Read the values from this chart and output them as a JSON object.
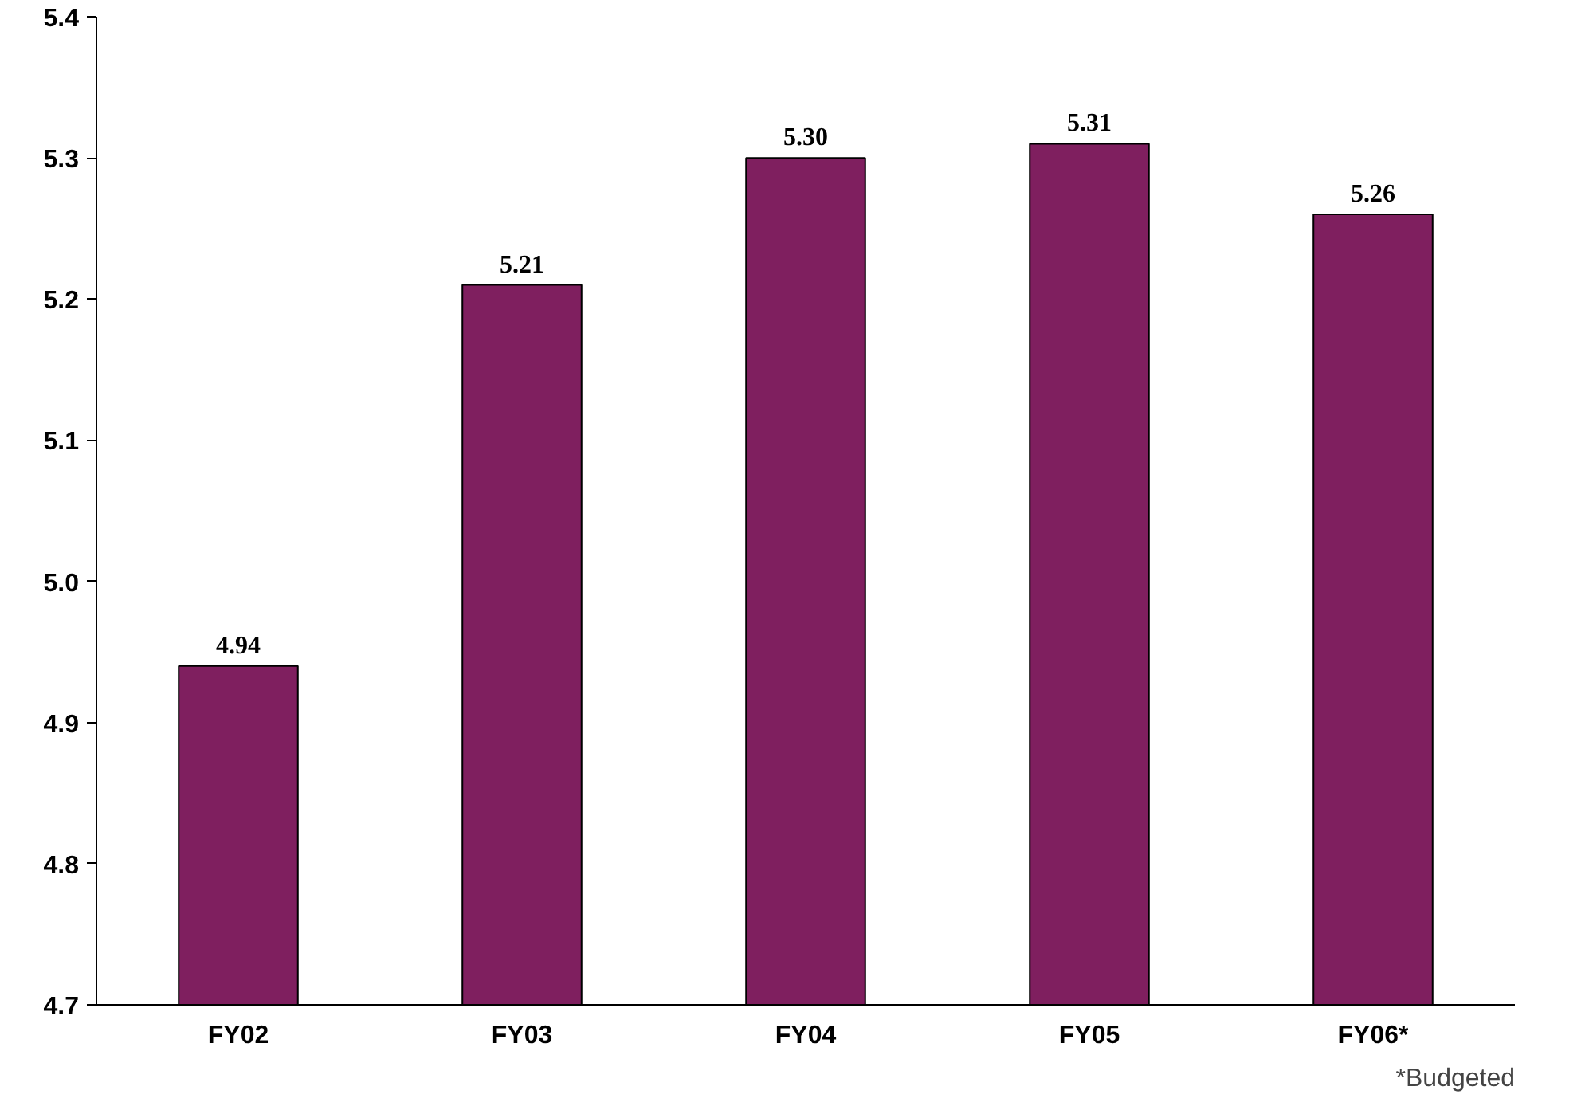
{
  "chart_data": {
    "type": "bar",
    "categories": [
      "FY02",
      "FY03",
      "FY04",
      "FY05",
      "FY06*"
    ],
    "values": [
      4.94,
      5.21,
      5.3,
      5.31,
      5.26
    ],
    "value_labels": [
      "4.94",
      "5.21",
      "5.30",
      "5.31",
      "5.26"
    ],
    "color": "#7f1f5f",
    "ylim": [
      4.7,
      5.4
    ],
    "yticks": [
      4.7,
      4.8,
      4.9,
      {
        "value": 5.0,
        "label": "5.0"
      },
      5.1,
      5.2,
      5.3,
      5.4
    ],
    "grid": false,
    "annotations": [
      "*Budgeted"
    ]
  }
}
